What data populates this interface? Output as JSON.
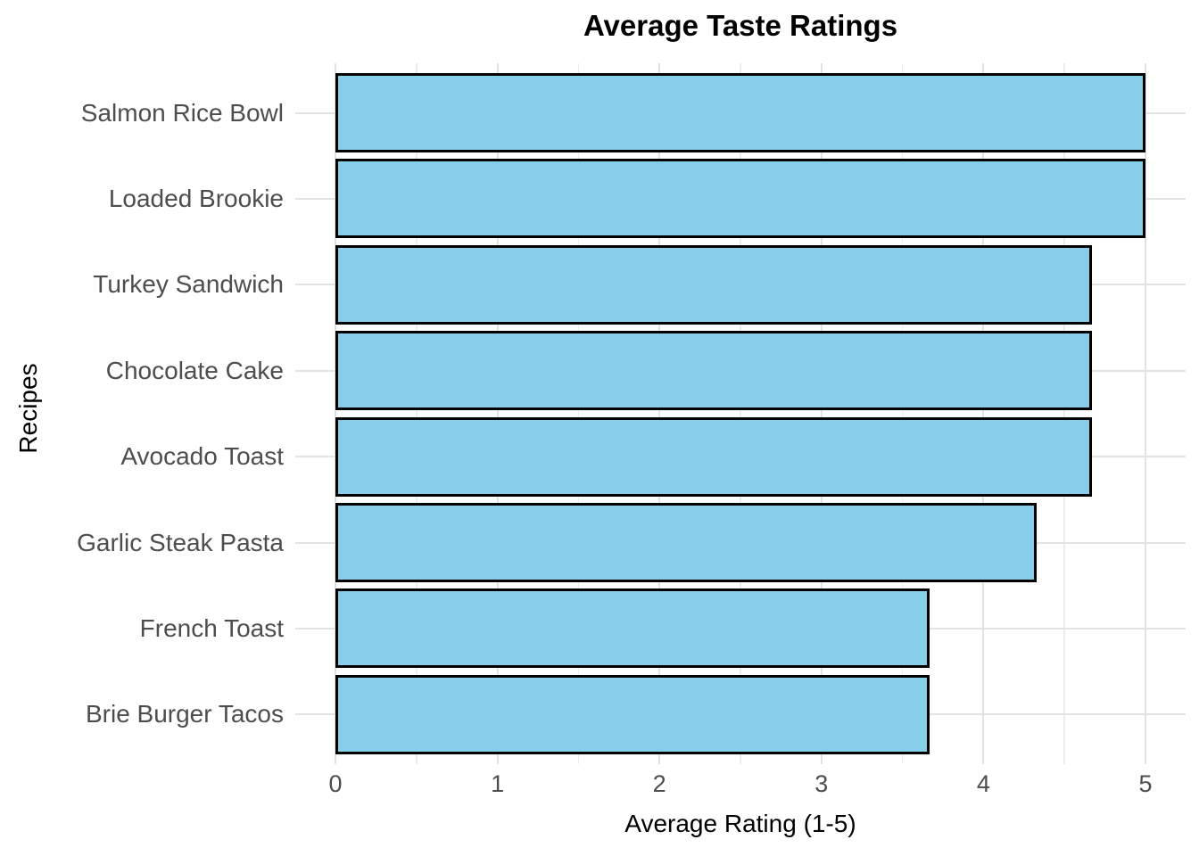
{
  "chart_data": {
    "type": "bar",
    "orientation": "horizontal",
    "title": "Average Taste Ratings",
    "xlabel": "Average Rating (1-5)",
    "ylabel": "Recipes",
    "categories": [
      "Salmon Rice Bowl",
      "Loaded Brookie",
      "Turkey Sandwich",
      "Chocolate Cake",
      "Avocado Toast",
      "Garlic Steak Pasta",
      "French Toast",
      "Brie Burger Tacos"
    ],
    "values": [
      5,
      5,
      4.67,
      4.67,
      4.67,
      4.33,
      3.67,
      3.67
    ],
    "xlim": [
      0,
      5
    ],
    "x_major_ticks": [
      0,
      1,
      2,
      3,
      4,
      5
    ],
    "x_minor_step": 0.5,
    "grid": true,
    "legend": "none",
    "colors": {
      "bar_fill": "#87CEEB",
      "bar_stroke": "#000000",
      "grid_major": "#e3e3e3",
      "grid_minor": "#ececec",
      "axis_text": "#4d4d4d",
      "title_text": "#000000",
      "background": "#ffffff"
    }
  }
}
